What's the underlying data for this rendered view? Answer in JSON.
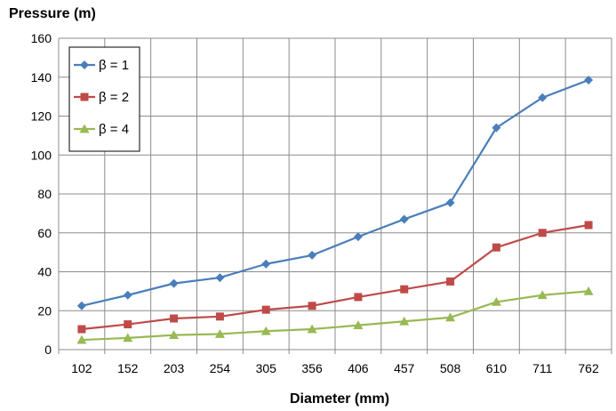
{
  "chart_data": {
    "type": "line",
    "ylabel": "Pressure (m)",
    "xlabel": "Diameter (mm)",
    "categories": [
      "102",
      "152",
      "203",
      "254",
      "305",
      "356",
      "406",
      "457",
      "508",
      "610",
      "711",
      "762"
    ],
    "ylim": [
      0,
      160
    ],
    "yticks": [
      0,
      20,
      40,
      60,
      80,
      100,
      120,
      140,
      160
    ],
    "grid": true,
    "legend_position": "top-left",
    "series": [
      {
        "name": "β = 1",
        "color": "#4a7ebb",
        "marker": "diamond",
        "values": [
          22.5,
          28,
          34,
          37,
          44,
          48.5,
          58,
          67,
          75.5,
          114,
          129.5,
          138.5
        ]
      },
      {
        "name": "β = 2",
        "color": "#be4b48",
        "marker": "square",
        "values": [
          10.5,
          13,
          16,
          17,
          20.5,
          22.5,
          27,
          31,
          35,
          52.5,
          60,
          64
        ]
      },
      {
        "name": "β = 4",
        "color": "#98b954",
        "marker": "triangle",
        "values": [
          5,
          6,
          7.5,
          8,
          9.5,
          10.5,
          12.5,
          14.5,
          16.5,
          24.5,
          28,
          30
        ]
      }
    ]
  }
}
